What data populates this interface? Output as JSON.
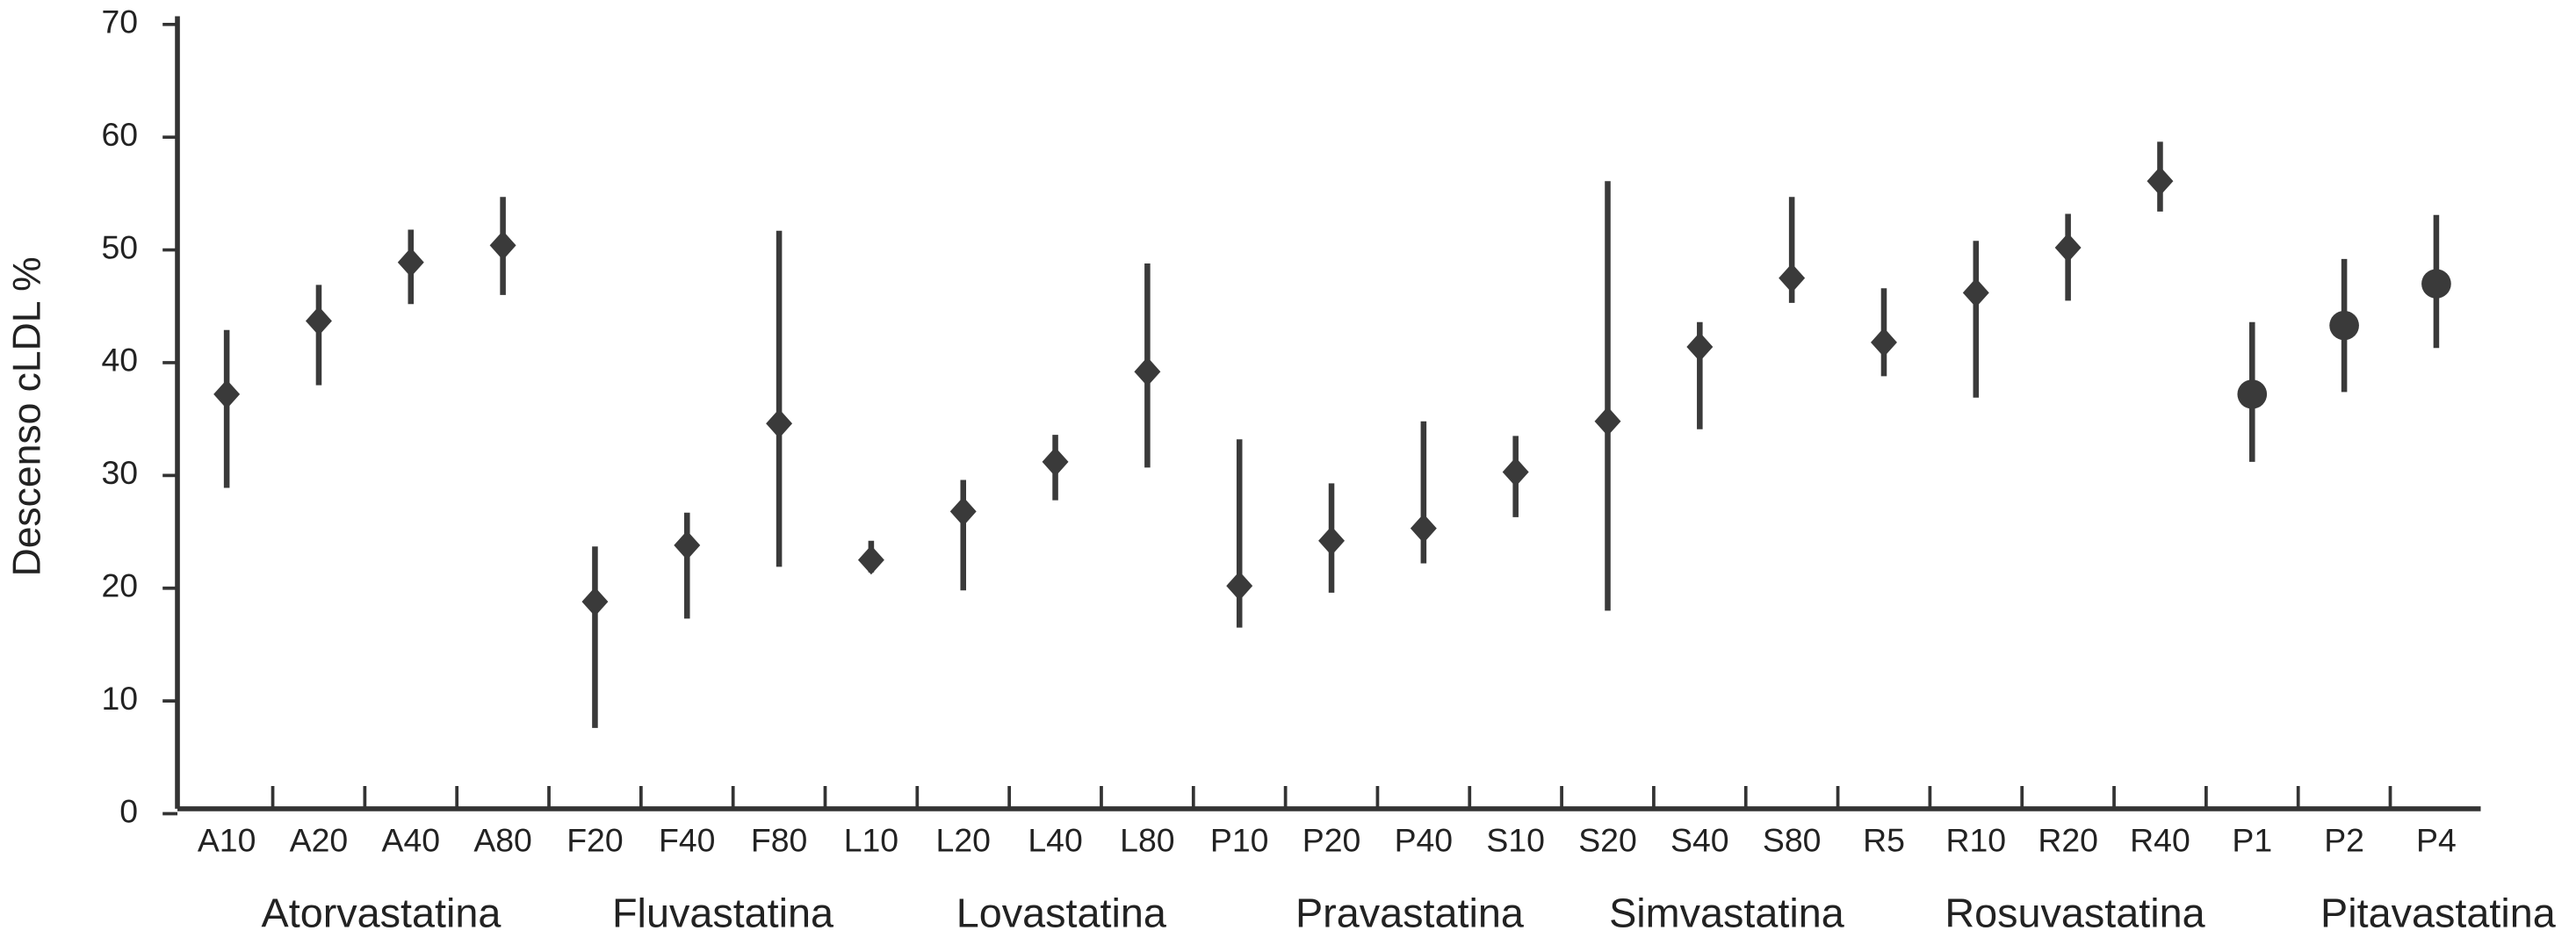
{
  "chart_data": {
    "type": "range",
    "y_label": "Descenso cLDL %",
    "ylim": [
      0,
      70
    ],
    "yticks": [
      0,
      10,
      20,
      30,
      40,
      50,
      60,
      70
    ],
    "color": "#3a3a3a",
    "categories": [
      "A10",
      "A20",
      "A40",
      "A80",
      "F20",
      "F40",
      "F80",
      "L10",
      "L20",
      "L40",
      "L80",
      "P10",
      "P20",
      "P40",
      "S10",
      "S20",
      "S40",
      "S80",
      "R5",
      "R10",
      "R20",
      "R40",
      "P1",
      "P2",
      "P4"
    ],
    "values": [
      37.2,
      43.7,
      48.9,
      50.4,
      18.8,
      23.8,
      34.6,
      22.5,
      26.8,
      31.2,
      39.2,
      20.2,
      24.2,
      25.3,
      30.3,
      34.8,
      41.4,
      47.5,
      41.8,
      46.2,
      50.2,
      56.1,
      37.2,
      43.3,
      47.0
    ],
    "low": [
      28.9,
      38.0,
      45.2,
      46.0,
      7.6,
      17.3,
      21.9,
      21.4,
      19.8,
      27.8,
      30.7,
      16.5,
      19.6,
      22.2,
      26.3,
      18.0,
      34.1,
      45.3,
      38.8,
      36.9,
      45.5,
      53.4,
      31.2,
      37.4,
      41.3
    ],
    "high": [
      42.9,
      46.9,
      51.8,
      54.7,
      23.7,
      26.7,
      51.7,
      24.2,
      29.6,
      33.6,
      48.8,
      33.2,
      29.3,
      34.8,
      33.5,
      56.1,
      43.6,
      54.7,
      46.6,
      50.8,
      53.2,
      59.6,
      43.6,
      49.2,
      53.1
    ],
    "markers": [
      "diamond",
      "diamond",
      "diamond",
      "diamond",
      "diamond",
      "diamond",
      "diamond",
      "diamond",
      "diamond",
      "diamond",
      "diamond",
      "diamond",
      "diamond",
      "diamond",
      "diamond",
      "diamond",
      "diamond",
      "diamond",
      "diamond",
      "diamond",
      "diamond",
      "diamond",
      "circle",
      "circle",
      "circle"
    ],
    "groups": [
      "Atorvastatina",
      "Fluvastatina",
      "Lovastatina",
      "Pravastatina",
      "Simvastatina",
      "Rosuvastatina",
      "Pitavastatina"
    ]
  }
}
